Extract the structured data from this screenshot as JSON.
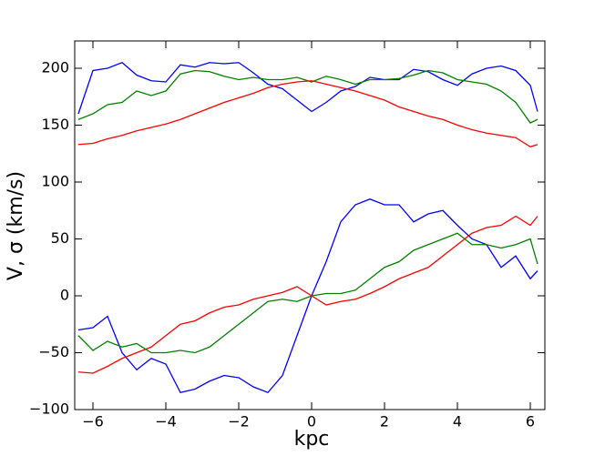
{
  "chart_data": {
    "type": "line",
    "x_label": "kpc",
    "y_label": "V, σ (km/s)",
    "x": [
      -6.4,
      -6.0,
      -5.6,
      -5.2,
      -4.8,
      -4.4,
      -4.0,
      -3.6,
      -3.2,
      -2.8,
      -2.4,
      -2.0,
      -1.6,
      -1.2,
      -0.8,
      -0.4,
      0,
      0.4,
      0.8,
      1.2,
      1.6,
      2.0,
      2.4,
      2.8,
      3.2,
      3.6,
      4.0,
      4.4,
      4.8,
      5.2,
      5.6,
      6.0,
      6.2
    ],
    "series": [
      {
        "color": "#0000ff",
        "values": [
          160,
          198,
          200,
          205,
          194,
          189,
          188,
          203,
          201,
          205,
          204,
          205,
          196,
          186,
          182,
          172,
          162,
          170,
          180,
          184,
          192,
          190,
          190,
          199,
          197,
          190,
          185,
          195,
          200,
          202,
          198,
          185,
          162
        ]
      },
      {
        "color": "#008000",
        "values": [
          155,
          160,
          168,
          170,
          180,
          176,
          180,
          195,
          198,
          197,
          193,
          190,
          192,
          190,
          190,
          192,
          188,
          193,
          190,
          186,
          190,
          190,
          191,
          194,
          198,
          196,
          190,
          188,
          186,
          180,
          170,
          152,
          155
        ]
      },
      {
        "color": "#ff0000",
        "values": [
          133,
          134,
          138,
          141,
          145,
          148,
          151,
          155,
          160,
          165,
          170,
          174,
          178,
          183,
          186,
          188,
          189,
          186,
          183,
          180,
          176,
          172,
          166,
          162,
          158,
          155,
          150,
          146,
          143,
          141,
          139,
          131,
          133
        ]
      },
      {
        "color": "#0000ff",
        "values": [
          -30,
          -28,
          -18,
          -50,
          -65,
          -55,
          -60,
          -85,
          -82,
          -75,
          -70,
          -72,
          -80,
          -85,
          -70,
          -35,
          0,
          30,
          65,
          80,
          85,
          80,
          80,
          65,
          72,
          75,
          62,
          50,
          45,
          25,
          35,
          15,
          22
        ]
      },
      {
        "color": "#008000",
        "values": [
          -35,
          -48,
          -40,
          -45,
          -42,
          -50,
          -50,
          -48,
          -50,
          -45,
          -35,
          -25,
          -15,
          -5,
          -3,
          -5,
          0,
          2,
          2,
          5,
          15,
          25,
          30,
          40,
          45,
          50,
          55,
          45,
          45,
          42,
          45,
          50,
          28
        ]
      },
      {
        "color": "#ff0000",
        "values": [
          -67,
          -68,
          -62,
          -55,
          -50,
          -45,
          -35,
          -25,
          -22,
          -15,
          -10,
          -8,
          -3,
          0,
          3,
          8,
          0,
          -8,
          -5,
          -3,
          2,
          8,
          15,
          20,
          25,
          35,
          45,
          55,
          60,
          62,
          70,
          62,
          70
        ]
      }
    ],
    "xlim": [
      -6.5,
      6.4
    ],
    "ylim": [
      -100,
      224
    ],
    "xticks": [
      {
        "value": -6,
        "label": "−6"
      },
      {
        "value": -4,
        "label": "−4"
      },
      {
        "value": -2,
        "label": "−2"
      },
      0,
      2,
      4,
      6
    ],
    "yticks": [
      {
        "value": -100,
        "label": "−100"
      },
      {
        "value": -50,
        "label": "−50"
      },
      0,
      50,
      100,
      150,
      200
    ]
  }
}
